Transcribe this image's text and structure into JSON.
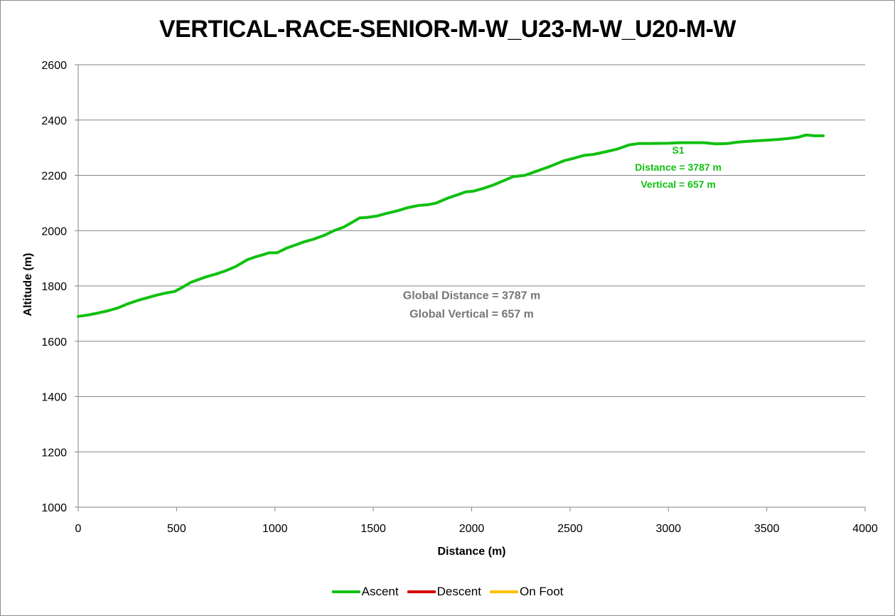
{
  "chart_data": {
    "type": "line",
    "title": "VERTICAL-RACE-SENIOR-M-W_U23-M-W_U20-M-W",
    "xlabel": "Distance (m)",
    "ylabel": "Altitude (m)",
    "xlim": [
      0,
      4000
    ],
    "ylim": [
      1000,
      2600
    ],
    "x_ticks": [
      "0",
      "500",
      "1000",
      "1500",
      "2000",
      "2500",
      "3000",
      "3500",
      "4000"
    ],
    "y_ticks": [
      "1000",
      "1200",
      "1400",
      "1600",
      "1800",
      "2000",
      "2200",
      "2400",
      "2600"
    ],
    "grid": "horizontal",
    "legend_position": "bottom",
    "series": [
      {
        "name": "Ascent",
        "color": "#10c010",
        "points": [
          [
            0,
            1690
          ],
          [
            50,
            1695
          ],
          [
            100,
            1702
          ],
          [
            150,
            1710
          ],
          [
            200,
            1720
          ],
          [
            250,
            1735
          ],
          [
            300,
            1747
          ],
          [
            350,
            1757
          ],
          [
            400,
            1767
          ],
          [
            450,
            1775
          ],
          [
            490,
            1780
          ],
          [
            530,
            1795
          ],
          [
            570,
            1812
          ],
          [
            610,
            1823
          ],
          [
            650,
            1833
          ],
          [
            700,
            1843
          ],
          [
            750,
            1855
          ],
          [
            800,
            1870
          ],
          [
            860,
            1895
          ],
          [
            900,
            1905
          ],
          [
            940,
            1913
          ],
          [
            970,
            1920
          ],
          [
            1010,
            1920
          ],
          [
            1060,
            1937
          ],
          [
            1100,
            1947
          ],
          [
            1150,
            1960
          ],
          [
            1200,
            1970
          ],
          [
            1250,
            1983
          ],
          [
            1300,
            2000
          ],
          [
            1350,
            2013
          ],
          [
            1400,
            2033
          ],
          [
            1430,
            2046
          ],
          [
            1470,
            2048
          ],
          [
            1520,
            2053
          ],
          [
            1570,
            2063
          ],
          [
            1620,
            2071
          ],
          [
            1680,
            2084
          ],
          [
            1730,
            2091
          ],
          [
            1780,
            2094
          ],
          [
            1820,
            2100
          ],
          [
            1880,
            2118
          ],
          [
            1930,
            2130
          ],
          [
            1970,
            2140
          ],
          [
            2010,
            2143
          ],
          [
            2060,
            2153
          ],
          [
            2110,
            2165
          ],
          [
            2160,
            2180
          ],
          [
            2210,
            2195
          ],
          [
            2270,
            2200
          ],
          [
            2330,
            2215
          ],
          [
            2400,
            2233
          ],
          [
            2470,
            2253
          ],
          [
            2520,
            2262
          ],
          [
            2570,
            2272
          ],
          [
            2620,
            2276
          ],
          [
            2680,
            2285
          ],
          [
            2740,
            2295
          ],
          [
            2800,
            2310
          ],
          [
            2850,
            2315
          ],
          [
            2900,
            2315
          ],
          [
            3000,
            2316
          ],
          [
            3060,
            2318
          ],
          [
            3120,
            2318
          ],
          [
            3180,
            2318
          ],
          [
            3240,
            2314
          ],
          [
            3300,
            2315
          ],
          [
            3350,
            2320
          ],
          [
            3400,
            2323
          ],
          [
            3450,
            2325
          ],
          [
            3500,
            2327
          ],
          [
            3560,
            2330
          ],
          [
            3620,
            2334
          ],
          [
            3660,
            2338
          ],
          [
            3700,
            2346
          ],
          [
            3740,
            2343
          ],
          [
            3787,
            2343
          ]
        ]
      },
      {
        "name": "Descent",
        "color": "#d40000",
        "points": []
      },
      {
        "name": "On Foot",
        "color": "#ffc000",
        "points": []
      }
    ],
    "annotations": [
      {
        "lines": [
          "S1",
          "Distance = 3787 m",
          "Vertical = 657 m"
        ],
        "color": "#10c010",
        "x": 3050,
        "y": 2278
      },
      {
        "lines": [
          "Global Distance = 3787 m",
          "Global Vertical = 657 m"
        ],
        "color": "#767676",
        "x": 2000,
        "y": 1752
      }
    ]
  }
}
